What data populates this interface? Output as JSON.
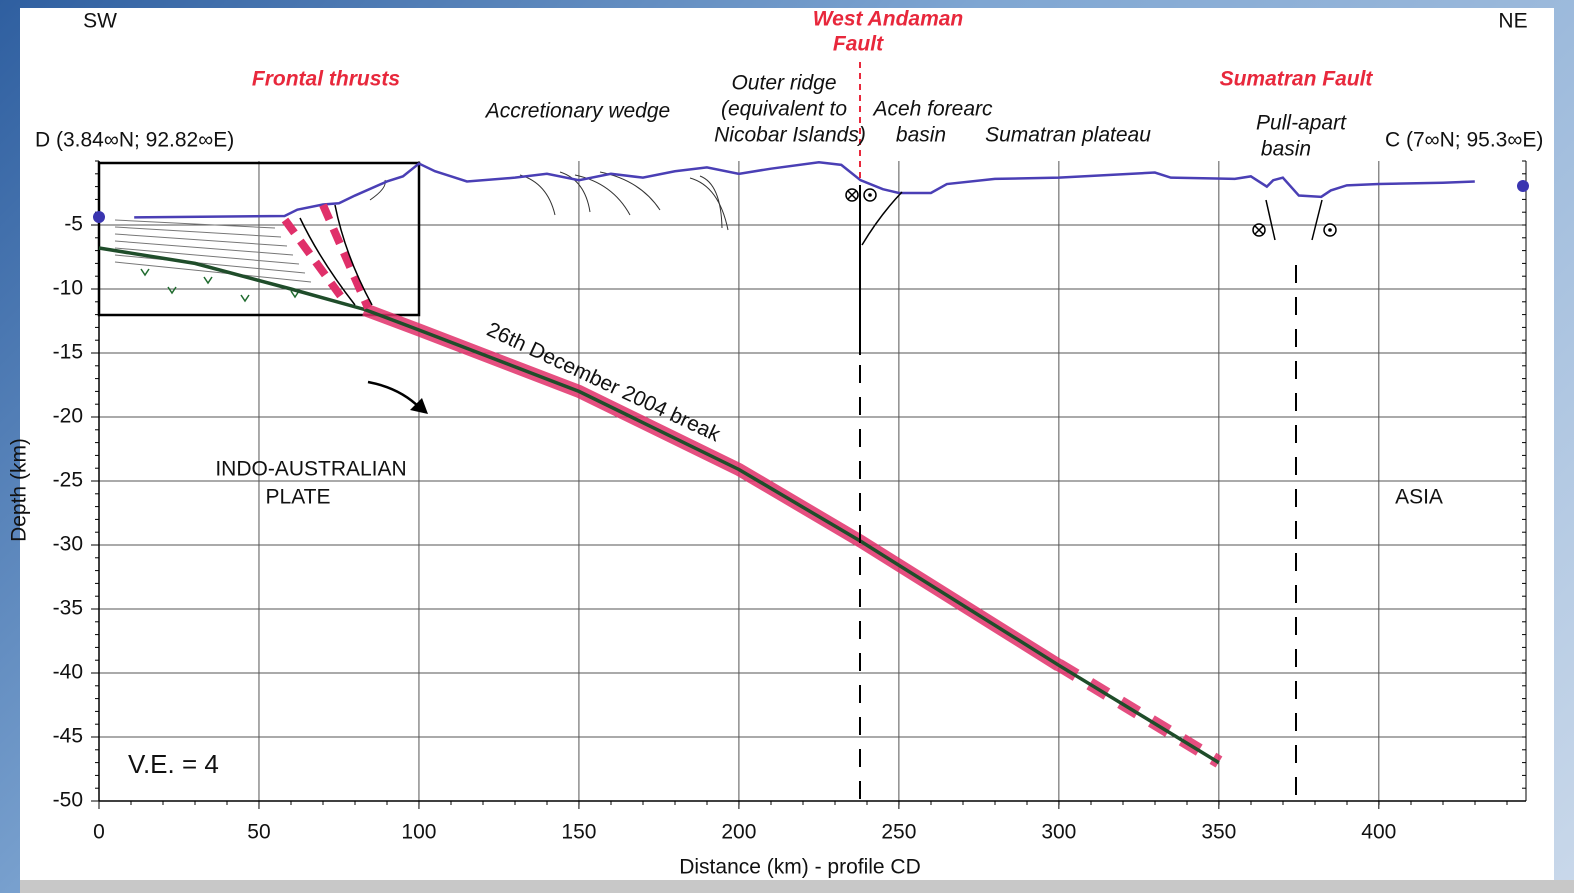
{
  "chart_data": {
    "type": "line",
    "xlabel": "Distance (km) - profile CD",
    "ylabel": "Depth (km)",
    "xlim": [
      0,
      446
    ],
    "ylim": [
      -50,
      0
    ],
    "xticks": [
      0,
      50,
      100,
      150,
      200,
      250,
      300,
      350,
      400
    ],
    "yticks": [
      -5,
      -10,
      -15,
      -20,
      -25,
      -30,
      -35,
      -40,
      -45,
      -50
    ],
    "grid": true,
    "annotations": [
      "SW",
      "NE",
      "West  Andaman",
      "Fault",
      "Frontal thrusts",
      "Sumatran Fault",
      "Accretionary wedge",
      "Outer ridge",
      "(equivalent to",
      "Nicobar Islands)",
      "Aceh forearc",
      "basin",
      "Sumatran plateau",
      "Pull-apart",
      "basin",
      "D (3.84∞N; 92.82∞E)",
      "C (7∞N; 95.3∞E)",
      "INDO-AUSTRALIAN",
      "PLATE",
      "ASIA",
      "V.E. = 4",
      "26th December 2004 break"
    ],
    "series": [
      {
        "color": "#4a3fb5",
        "x": [
          11,
          58,
          62,
          70,
          75,
          80,
          90,
          95,
          100,
          105,
          110,
          115,
          130,
          140,
          150,
          160,
          170,
          180,
          190,
          200,
          210,
          225,
          232,
          238,
          245,
          250,
          260,
          265,
          280,
          300,
          330,
          335,
          355,
          360,
          365,
          367,
          370,
          375,
          382,
          385,
          390,
          400,
          420,
          430
        ],
        "values": [
          -4.4,
          -4.3,
          -3.8,
          -3.4,
          -3.3,
          -2.7,
          -1.6,
          -1.2,
          -0.2,
          -0.8,
          -1.2,
          -1.6,
          -1.3,
          -1.0,
          -1.5,
          -1.0,
          -1.3,
          -0.8,
          -0.5,
          -1.0,
          -0.6,
          -0.1,
          -0.3,
          -1.5,
          -2.2,
          -2.5,
          -2.5,
          -1.8,
          -1.4,
          -1.3,
          -0.9,
          -1.3,
          -1.4,
          -1.2,
          -2.0,
          -1.5,
          -1.3,
          -2.7,
          -2.8,
          -2.3,
          -1.9,
          -1.8,
          -1.7,
          -1.6
        ]
      },
      {
        "color": "#1f4d2a",
        "x": [
          0,
          30,
          60,
          83,
          100,
          150,
          200,
          238,
          300,
          350
        ],
        "values": [
          -6.8,
          -8.0,
          -10.0,
          -11.6,
          -13.2,
          -18.0,
          -24.1,
          -29.7,
          -39.4,
          -47.0
        ]
      },
      {
        "color": "#e0306a",
        "x": [
          83,
          100,
          150,
          200,
          238,
          300
        ],
        "values": [
          -11.6,
          -13.2,
          -18.0,
          -24.1,
          -29.7,
          -39.4
        ]
      }
    ]
  }
}
